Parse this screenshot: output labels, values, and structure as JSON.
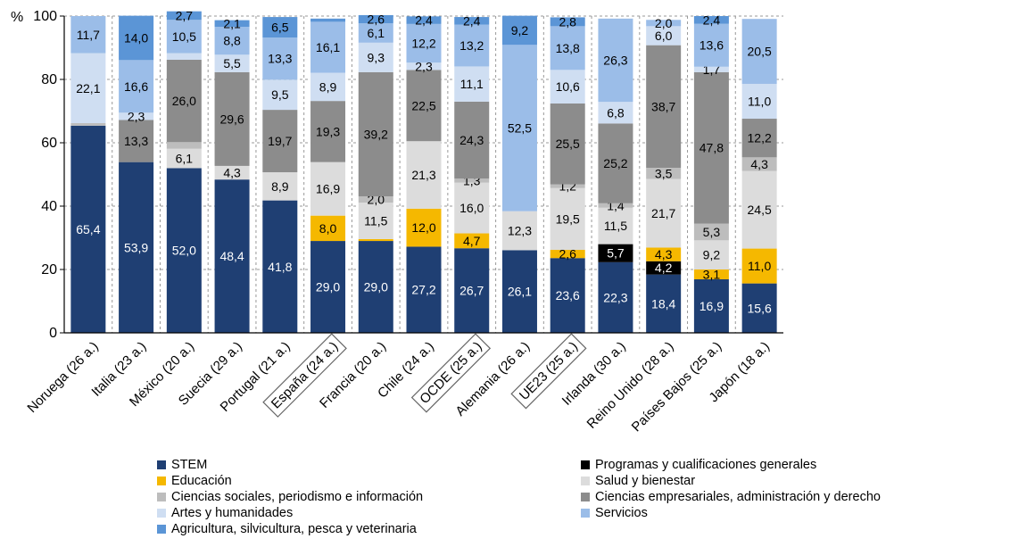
{
  "chart_data": {
    "type": "bar",
    "stacked": true,
    "ylabel": "%",
    "ylim": [
      0,
      100
    ],
    "yticks": [
      0,
      20,
      40,
      60,
      80,
      100
    ],
    "grid": "horizontal dashed",
    "legend_position": "bottom",
    "categories": [
      "Noruega (26 a.)",
      "Italia (23 a.)",
      "México (20 a.)",
      "Suecia (29 a.)",
      "Portugal (21 a.)",
      "España (24 a.)",
      "Francia (20 a.)",
      "Chile (24 a.)",
      "OCDE (25 a.)",
      "Alemania (26 a.)",
      "UE23 (25 a.)",
      "Irlanda (30 a.)",
      "Reino Unido (28 a.)",
      "Países Bajos (25 a.)",
      "Japón (18 a.)"
    ],
    "boxed_categories": [
      "España (24 a.)",
      "OCDE (25 a.)",
      "UE23 (25 a.)"
    ],
    "series": [
      {
        "name": "STEM",
        "color": "#1f3f73",
        "label_color": "#ffffff",
        "values": [
          65.4,
          53.9,
          52.0,
          48.4,
          41.8,
          29.0,
          29.0,
          27.2,
          26.7,
          26.1,
          23.6,
          22.3,
          18.4,
          16.9,
          15.6
        ],
        "labels": [
          "65,4",
          "53,9",
          "52,0",
          "48,4",
          "41,8",
          "29,0",
          "29,0",
          "27,2",
          "26,7",
          "26,1",
          "23,6",
          "22,3",
          "18,4",
          "16,9",
          "15,6"
        ]
      },
      {
        "name": "Programas y cualificaciones generales",
        "color": "#000000",
        "label_color": "#ffffff",
        "values": [
          0,
          0,
          0,
          0,
          0,
          0,
          0,
          0,
          0,
          0,
          0,
          5.7,
          4.2,
          0,
          0
        ],
        "labels": [
          "",
          "",
          "",
          "",
          "",
          "",
          "",
          "",
          "",
          "",
          "",
          "5,7",
          "4,2",
          "",
          ""
        ]
      },
      {
        "name": "Educación",
        "color": "#f5b800",
        "label_color": "#000000",
        "values": [
          0,
          0,
          0,
          0,
          0,
          8.0,
          0.6,
          12.0,
          4.7,
          0,
          2.6,
          0,
          4.3,
          3.1,
          11.0
        ],
        "labels": [
          "",
          "",
          "",
          "",
          "",
          "8,0",
          "",
          "12,0",
          "4,7",
          "",
          "2,6",
          "",
          "4,3",
          "3,1",
          "11,0"
        ]
      },
      {
        "name": "Salud y bienestar",
        "color": "#dcdcdc",
        "label_color": "#000000",
        "values": [
          0,
          0,
          6.1,
          4.3,
          8.9,
          16.9,
          11.5,
          21.3,
          16.0,
          12.3,
          19.5,
          11.5,
          21.7,
          9.2,
          24.5
        ],
        "labels": [
          "",
          "",
          "6,1",
          "4,3",
          "8,9",
          "16,9",
          "11,5",
          "21,3",
          "16,0",
          "12,3",
          "19,5",
          "11,5",
          "21,7",
          "9,2",
          "24,5"
        ]
      },
      {
        "name": "Ciencias sociales, periodismo e información",
        "color": "#bdbdbd",
        "label_color": "#000000",
        "values": [
          0.8,
          0,
          2.1,
          0,
          0,
          0,
          2.0,
          0,
          1.3,
          0,
          1.2,
          1.4,
          3.5,
          5.3,
          4.3
        ],
        "labels": [
          "",
          "",
          "",
          "",
          "",
          "",
          "2,0",
          "",
          "1,3",
          "",
          "1,2",
          "1,4",
          "3,5",
          "5,3",
          "4,3"
        ]
      },
      {
        "name": "Ciencias empresariales, administración y derecho",
        "color": "#8c8c8c",
        "label_color": "#000000",
        "values": [
          0,
          13.3,
          26.0,
          29.6,
          19.7,
          19.3,
          39.2,
          22.5,
          24.3,
          0,
          25.5,
          25.2,
          38.7,
          47.8,
          12.2
        ],
        "labels": [
          "",
          "13,3",
          "26,0",
          "29,6",
          "19,7",
          "19,3",
          "39,2",
          "22,5",
          "24,3",
          "",
          "25,5",
          "25,2",
          "38,7",
          "47,8",
          "12,2"
        ]
      },
      {
        "name": "Artes y humanidades",
        "color": "#cfdef2",
        "label_color": "#000000",
        "values": [
          22.1,
          2.3,
          2.1,
          5.5,
          9.5,
          8.9,
          9.3,
          2.3,
          11.1,
          0,
          10.6,
          6.8,
          6.0,
          1.7,
          11.0
        ],
        "labels": [
          "22,1",
          "2,3",
          "",
          "5,5",
          "9,5",
          "8,9",
          "9,3",
          "2,3",
          "11,1",
          "",
          "10,6",
          "6,8",
          "6,0",
          "1,7",
          "11,0"
        ]
      },
      {
        "name": "Servicios",
        "color": "#9bbde8",
        "label_color": "#000000",
        "values": [
          11.7,
          16.6,
          10.5,
          8.8,
          13.3,
          16.1,
          6.1,
          12.2,
          13.2,
          52.5,
          13.8,
          26.3,
          2.0,
          13.6,
          20.5
        ],
        "labels": [
          "11,7",
          "16,6",
          "10,5",
          "8,8",
          "13,3",
          "16,1",
          "6,1",
          "12,2",
          "13,2",
          "52,5",
          "13,8",
          "26,3",
          "2,0",
          "13,6",
          "20,5"
        ]
      },
      {
        "name": "Agricultura, silvicultura, pesca y veterinaria",
        "color": "#5b95d6",
        "label_color": "#000000",
        "values": [
          0,
          14.0,
          2.7,
          2.1,
          6.5,
          1.0,
          2.6,
          2.4,
          2.4,
          9.2,
          2.8,
          0,
          0,
          2.4,
          0
        ],
        "labels": [
          "",
          "14,0",
          "2,7",
          "2,1",
          "6,5",
          "",
          "2,6",
          "2,4",
          "2,4",
          "9,2",
          "2,8",
          "",
          "",
          "2,4",
          ""
        ]
      }
    ],
    "legend_left": [
      "STEM",
      "Educación",
      "Ciencias sociales, periodismo e información",
      "Artes y humanidades",
      "Agricultura, silvicultura, pesca y veterinaria"
    ],
    "legend_right": [
      "Programas y cualificaciones generales",
      "Salud y bienestar",
      "Ciencias empresariales, administración y derecho",
      "Servicios"
    ]
  }
}
